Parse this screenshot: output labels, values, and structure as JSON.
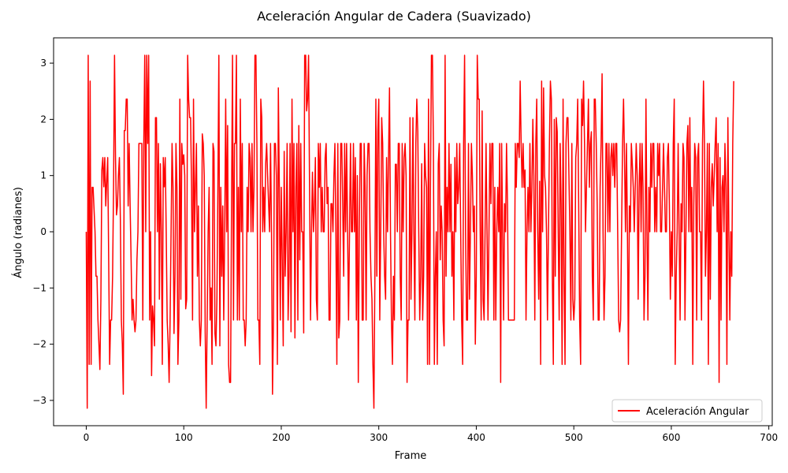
{
  "chart_data": {
    "type": "line",
    "title": "Aceleración Angular de Cadera (Suavizado)",
    "xlabel": "Frame",
    "ylabel": "Ángulo (radianes)",
    "xlim": [
      -33.5,
      703.5
    ],
    "ylim": [
      -3.45,
      3.45
    ],
    "xticks": [
      0,
      100,
      200,
      300,
      400,
      500,
      600,
      700
    ],
    "yticks": [
      -3,
      -2,
      -1,
      0,
      1,
      2,
      3
    ],
    "xtick_labels": [
      "0",
      "100",
      "200",
      "300",
      "400",
      "500",
      "600",
      "700"
    ],
    "ytick_labels": [
      "−3",
      "−2",
      "−1",
      "0",
      "1",
      "2",
      "3"
    ],
    "grid": false,
    "legend": {
      "placement": "lower-right",
      "entries": [
        "Aceleración Angular"
      ]
    },
    "series": [
      {
        "name": "Aceleración Angular",
        "color": "#ff0000",
        "x_start": 0,
        "x_step": 1,
        "values": [
          0.0,
          -3.14,
          3.14,
          -2.36,
          2.68,
          -2.36,
          0.79,
          0.79,
          0.4,
          0.0,
          -0.79,
          -0.79,
          -1.57,
          -2.0,
          -2.45,
          -1.2,
          1.1,
          1.32,
          0.8,
          1.32,
          0.46,
          0.9,
          1.32,
          -0.5,
          -2.36,
          -1.57,
          -1.57,
          -0.79,
          0.79,
          3.14,
          1.32,
          0.3,
          0.46,
          1.0,
          1.32,
          0.2,
          -1.57,
          -2.0,
          -2.89,
          1.8,
          1.8,
          2.36,
          2.36,
          0.46,
          1.57,
          0.46,
          -0.5,
          -1.57,
          -1.2,
          -1.57,
          -1.78,
          -1.57,
          -0.5,
          0.0,
          1.57,
          1.57,
          1.57,
          1.57,
          -1.57,
          1.57,
          3.14,
          0.0,
          3.14,
          1.57,
          3.14,
          -1.57,
          0.0,
          -2.56,
          -1.32,
          -1.57,
          -2.03,
          2.03,
          2.03,
          0.0,
          1.57,
          -1.2,
          1.21,
          0.0,
          -2.36,
          1.32,
          0.8,
          1.32,
          0.0,
          -1.57,
          -2.0,
          -2.68,
          -1.57,
          0.0,
          1.57,
          0.79,
          -1.81,
          -0.79,
          1.57,
          0.79,
          -2.36,
          -1.57,
          2.36,
          -1.2,
          1.57,
          1.2,
          1.37,
          1.0,
          -1.37,
          -1.2,
          3.14,
          2.36,
          2.03,
          2.03,
          0.79,
          -1.57,
          2.36,
          0.0,
          0.79,
          1.57,
          -0.79,
          0.46,
          -1.57,
          -2.03,
          -1.57,
          1.74,
          1.57,
          1.0,
          -1.8,
          -3.14,
          -1.57,
          0.0,
          0.79,
          -1.57,
          -1.0,
          -2.36,
          1.57,
          1.43,
          -1.81,
          -2.03,
          -1.2,
          0.79,
          3.14,
          -2.03,
          0.79,
          -0.79,
          0.46,
          -1.57,
          0.0,
          2.36,
          0.0,
          1.89,
          -2.36,
          -2.68,
          -2.68,
          0.5,
          3.14,
          -1.57,
          1.57,
          1.57,
          3.14,
          -1.57,
          0.79,
          -1.57,
          2.36,
          0.0,
          1.57,
          -1.57,
          -1.57,
          -2.03,
          -1.57,
          0.79,
          0.0,
          1.57,
          1.32,
          0.0,
          1.57,
          0.0,
          0.79,
          3.14,
          3.14,
          1.57,
          -1.57,
          -1.57,
          -2.36,
          2.36,
          2.03,
          0.0,
          0.79,
          0.0,
          1.21,
          1.57,
          1.0,
          0.5,
          0.0,
          1.57,
          0.0,
          -2.89,
          -1.57,
          1.57,
          1.57,
          1.0,
          -2.36,
          2.56,
          0.79,
          -1.57,
          0.79,
          -0.5,
          -2.03,
          1.43,
          -0.79,
          0.0,
          1.57,
          -1.57,
          -0.79,
          1.57,
          -1.78,
          2.36,
          0.0,
          1.57,
          -1.89,
          0.79,
          1.57,
          -1.57,
          1.89,
          -0.5,
          1.57,
          0.0,
          0.0,
          -1.8,
          3.14,
          3.14,
          2.15,
          2.36,
          3.14,
          0.79,
          -1.57,
          0.0,
          1.06,
          0.0,
          0.46,
          1.32,
          -1.2,
          -1.57,
          1.57,
          0.79,
          1.57,
          0.0,
          0.79,
          0.0,
          0.0,
          1.32,
          1.57,
          0.5,
          0.79,
          -1.57,
          -1.57,
          0.5,
          0.5,
          0.0,
          1.0,
          1.57,
          0.0,
          -2.36,
          1.57,
          -1.89,
          -1.57,
          1.57,
          1.57,
          0.5,
          -0.79,
          1.57,
          0.0,
          1.57,
          0.0,
          -1.57,
          0.0,
          1.57,
          0.0,
          0.0,
          1.57,
          0.0,
          1.32,
          -1.57,
          1.0,
          -2.68,
          0.0,
          1.57,
          1.57,
          -1.57,
          -1.57,
          1.57,
          0.79,
          -1.57,
          1.0,
          1.57,
          1.57,
          0.0,
          -0.79,
          -1.2,
          -2.36,
          -3.14,
          -0.79,
          2.36,
          -0.79,
          1.78,
          2.36,
          -1.57,
          0.0,
          2.03,
          1.57,
          0.0,
          -0.79,
          -1.2,
          1.32,
          0.0,
          1.32,
          2.56,
          0.0,
          -1.57,
          -2.36,
          -0.79,
          -1.57,
          1.2,
          1.2,
          0.0,
          1.57,
          1.57,
          -0.79,
          -1.57,
          1.57,
          0.0,
          1.32,
          1.57,
          1.0,
          -2.68,
          -1.57,
          -1.57,
          2.03,
          -1.2,
          0.0,
          2.03,
          0.0,
          -1.57,
          1.57,
          2.36,
          1.78,
          0.0,
          -1.57,
          -0.79,
          1.21,
          -1.57,
          -0.79,
          1.57,
          1.0,
          0.79,
          -2.36,
          2.36,
          -2.36,
          0.79,
          3.14,
          3.14,
          1.57,
          -2.36,
          -0.79,
          0.0,
          -2.36,
          1.21,
          1.57,
          -0.5,
          0.46,
          0.0,
          -1.57,
          -2.03,
          3.14,
          -0.79,
          0.79,
          0.0,
          1.57,
          0.0,
          1.2,
          -0.79,
          0.0,
          -1.57,
          1.32,
          0.0,
          1.57,
          0.5,
          0.79,
          1.57,
          0.0,
          -1.57,
          -2.36,
          1.57,
          3.14,
          0.0,
          -1.57,
          -1.57,
          1.57,
          -1.2,
          0.0,
          1.57,
          1.0,
          0.0,
          0.46,
          -2.0,
          -0.79,
          3.14,
          2.36,
          2.36,
          0.0,
          -1.57,
          2.15,
          -1.2,
          -1.57,
          0.0,
          1.57,
          0.0,
          -1.57,
          0.0,
          1.57,
          0.5,
          1.57,
          1.57,
          -1.57,
          0.79,
          -1.57,
          0.0,
          0.79,
          0.0,
          1.57,
          -2.68,
          1.57,
          0.0,
          -1.57,
          0.5,
          0.0,
          1.57,
          0.5,
          -1.57,
          -1.57,
          -1.57,
          -1.57,
          -1.57,
          -1.57,
          -1.57,
          1.57,
          0.79,
          1.57,
          1.57,
          1.32,
          2.68,
          1.57,
          0.79,
          1.57,
          0.79,
          1.1,
          -1.57,
          0.0,
          0.79,
          0.0,
          1.57,
          0.0,
          0.79,
          2.0,
          1.0,
          -1.57,
          1.57,
          2.36,
          0.0,
          -1.2,
          0.9,
          -2.36,
          2.68,
          0.0,
          2.56,
          1.0,
          0.79,
          0.0,
          -1.57,
          0.0,
          1.57,
          2.68,
          2.36,
          -0.79,
          -2.36,
          2.0,
          -0.79,
          2.03,
          1.78,
          0.0,
          -1.57,
          1.57,
          0.5,
          -2.36,
          2.36,
          -0.79,
          -2.36,
          1.57,
          2.03,
          2.03,
          1.0,
          0.0,
          -1.57,
          1.57,
          -1.2,
          -1.57,
          -1.2,
          1.32,
          1.57,
          2.36,
          0.5,
          -1.57,
          -2.36,
          2.36,
          1.89,
          2.68,
          1.57,
          0.0,
          0.79,
          1.57,
          2.36,
          0.79,
          1.57,
          1.78,
          -0.79,
          -1.57,
          2.36,
          2.36,
          1.57,
          0.46,
          -1.57,
          -1.57,
          0.79,
          1.57,
          2.81,
          0.0,
          -1.57,
          -0.79,
          1.57,
          1.57,
          0.0,
          1.57,
          0.0,
          1.32,
          1.57,
          1.0,
          1.57,
          0.79,
          1.57,
          1.57,
          0.0,
          -1.57,
          -1.78,
          -1.57,
          0.0,
          1.57,
          2.36,
          1.32,
          0.0,
          1.57,
          0.0,
          -2.36,
          0.46,
          0.0,
          1.57,
          1.2,
          0.79,
          0.0,
          0.79,
          1.57,
          1.0,
          -1.2,
          0.79,
          1.57,
          0.0,
          1.57,
          0.79,
          -1.57,
          -0.79,
          2.36,
          0.0,
          -1.57,
          0.79,
          0.0,
          1.57,
          0.79,
          1.57,
          1.57,
          0.0,
          0.79,
          0.0,
          1.57,
          1.0,
          1.57,
          0.0,
          0.0,
          0.79,
          1.57,
          0.79,
          0.0,
          0.0,
          1.32,
          1.57,
          0.46,
          -1.2,
          0.0,
          -0.79,
          1.57,
          2.36,
          -2.36,
          -0.79,
          0.0,
          1.57,
          0.0,
          -1.57,
          0.5,
          0.0,
          1.57,
          1.32,
          -1.57,
          0.0,
          1.57,
          1.89,
          0.0,
          2.03,
          0.0,
          0.79,
          -2.36,
          0.46,
          1.57,
          1.32,
          -1.57,
          1.32,
          1.57,
          0.0,
          0.0,
          -1.57,
          1.57,
          2.68,
          1.57,
          -0.79,
          0.0,
          1.57,
          -2.36,
          1.57,
          -1.2,
          0.79,
          1.21,
          0.46,
          1.0,
          1.57,
          2.03,
          0.0,
          1.57,
          -2.68,
          1.32,
          -1.57,
          0.79,
          1.0,
          0.0,
          1.57,
          0.79,
          -2.36,
          2.03,
          0.0,
          -1.57,
          0.0,
          -0.79,
          1.57,
          2.68
        ]
      }
    ]
  }
}
